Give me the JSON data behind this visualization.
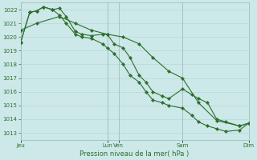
{
  "title": "Pression niveau de la mer( hPa )",
  "bg_color": "#cce8e8",
  "grid_color": "#b8d8d8",
  "line_color": "#2d6e2d",
  "ylim": [
    1012.5,
    1022.5
  ],
  "yticks": [
    1013,
    1014,
    1015,
    1016,
    1017,
    1018,
    1019,
    1020,
    1021,
    1022
  ],
  "xlim": [
    0,
    100
  ],
  "vline_positions": [
    0,
    38,
    43,
    71,
    100
  ],
  "xtick_positions": [
    0,
    38,
    43,
    71,
    100
  ],
  "xtick_labels": [
    "Jeu",
    "Lun",
    "Ven",
    "Sam",
    "Dim"
  ],
  "series1_x": [
    0,
    4,
    7,
    10,
    14,
    17,
    20,
    24,
    27,
    31,
    36,
    38,
    41,
    45,
    48,
    52,
    55,
    58,
    62,
    65,
    71,
    75,
    78,
    82,
    86,
    90,
    96,
    100
  ],
  "series1_y": [
    1019.6,
    1021.8,
    1021.9,
    1022.2,
    1022.0,
    1022.1,
    1021.5,
    1020.4,
    1020.2,
    1020.1,
    1020.2,
    1020.2,
    1019.5,
    1019.2,
    1018.5,
    1017.2,
    1016.7,
    1016.0,
    1015.7,
    1015.5,
    1016.2,
    1015.8,
    1015.5,
    1015.2,
    1014.0,
    1013.8,
    1013.5,
    1013.7
  ],
  "series2_x": [
    0,
    4,
    7,
    10,
    14,
    17,
    20,
    24,
    27,
    31,
    36,
    38,
    41,
    45,
    48,
    52,
    55,
    58,
    62,
    65,
    71,
    75,
    78,
    82,
    86,
    90,
    96,
    100
  ],
  "series2_y": [
    1019.6,
    1021.8,
    1021.9,
    1022.2,
    1022.0,
    1021.6,
    1021.0,
    1020.2,
    1020.0,
    1019.9,
    1019.5,
    1019.2,
    1018.8,
    1018.0,
    1017.2,
    1016.7,
    1016.0,
    1015.4,
    1015.2,
    1015.0,
    1014.8,
    1014.3,
    1013.8,
    1013.5,
    1013.3,
    1013.1,
    1013.2,
    1013.7
  ],
  "series3_x": [
    0,
    7,
    17,
    24,
    31,
    38,
    45,
    52,
    58,
    65,
    71,
    78,
    86,
    96,
    100
  ],
  "series3_y": [
    1020.5,
    1021.0,
    1021.5,
    1021.0,
    1020.5,
    1020.2,
    1020.0,
    1019.5,
    1018.5,
    1017.5,
    1017.0,
    1015.2,
    1013.9,
    1013.5,
    1013.7
  ]
}
